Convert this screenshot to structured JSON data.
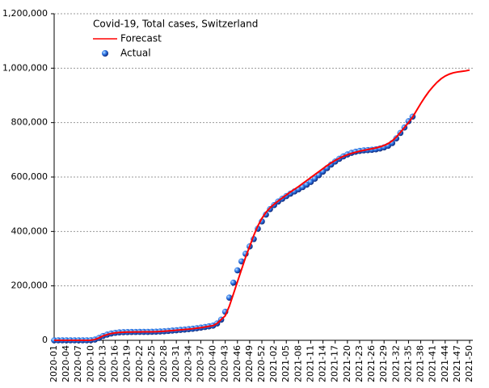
{
  "chart_data": {
    "type": "line",
    "title": "Covid-19, Total cases, Switzerland",
    "categories": [
      "2020-01",
      null,
      null,
      "2020-04",
      null,
      null,
      "2020-07",
      null,
      null,
      "2020-10",
      null,
      null,
      "2020-13",
      null,
      null,
      "2020-16",
      null,
      null,
      "2020-19",
      null,
      null,
      "2020-22",
      null,
      null,
      "2020-25",
      null,
      null,
      "2020-28",
      null,
      null,
      "2020-31",
      null,
      null,
      "2020-34",
      null,
      null,
      "2020-37",
      null,
      null,
      "2020-40",
      null,
      null,
      "2020-43",
      null,
      null,
      "2020-46",
      null,
      null,
      "2020-49",
      null,
      null,
      "2020-52",
      null,
      null,
      "2021-02",
      null,
      null,
      "2021-05",
      null,
      null,
      "2021-08",
      null,
      null,
      "2021-11",
      null,
      null,
      "2021-14",
      null,
      null,
      "2021-17",
      null,
      null,
      "2021-20",
      null,
      null,
      "2021-23",
      null,
      null,
      "2021-26",
      null,
      null,
      "2021-29",
      null,
      null,
      "2021-32",
      null,
      null,
      "2021-35",
      null,
      null,
      "2021-38",
      null,
      null,
      "2021-41",
      null,
      null,
      "2021-44",
      null,
      null,
      "2021-47",
      null,
      null,
      "2021-50"
    ],
    "series": [
      {
        "name": "Forecast",
        "color": "#ff0000",
        "values": [
          0,
          0,
          0,
          0,
          0,
          0,
          0,
          0,
          20,
          400,
          2700,
          8800,
          16000,
          21000,
          25000,
          27500,
          29000,
          29800,
          30300,
          30600,
          30800,
          30900,
          31000,
          31100,
          31300,
          31700,
          32400,
          33300,
          34500,
          35700,
          37000,
          38300,
          39600,
          41000,
          42500,
          44500,
          46500,
          49000,
          51500,
          54000,
          62000,
          76000,
          90000,
          125000,
          170000,
          215000,
          260000,
          305000,
          345000,
          385000,
          420000,
          448000,
          470000,
          487000,
          500000,
          512000,
          523000,
          534000,
          545000,
          555000,
          565000,
          576000,
          587000,
          598000,
          609000,
          620000,
          631000,
          642000,
          652000,
          661000,
          669000,
          676000,
          682000,
          687000,
          691000,
          695000,
          698000,
          701000,
          704000,
          707000,
          711000,
          716000,
          723000,
          733000,
          747000,
          764000,
          782000,
          800000,
          820000,
          845000,
          870000,
          893000,
          914000,
          932000,
          948000,
          961000,
          971000,
          978000,
          983000,
          986000,
          988000,
          990000,
          993000
        ]
      },
      {
        "name": "Actual",
        "color": "#2255dd",
        "values": [
          0,
          0,
          0,
          0,
          0,
          0,
          0,
          0,
          20,
          400,
          2700,
          8800,
          16000,
          21000,
          25000,
          27500,
          29000,
          29800,
          30300,
          30600,
          30800,
          30900,
          31000,
          31100,
          31300,
          31700,
          32400,
          33300,
          34500,
          35700,
          37000,
          38300,
          39600,
          41000,
          42500,
          44500,
          46500,
          49000,
          51500,
          54000,
          62000,
          76000,
          105000,
          157000,
          212000,
          257000,
          290000,
          318000,
          345000,
          372000,
          410000,
          437000,
          462000,
          482000,
          497000,
          510000,
          520000,
          530000,
          539000,
          547000,
          555000,
          563000,
          572000,
          582000,
          594000,
          607000,
          620000,
          633000,
          646000,
          657000,
          667000,
          676000,
          683000,
          689000,
          693000,
          696000,
          698000,
          699000,
          700000,
          702000,
          705000,
          709000,
          715000,
          725000,
          742000,
          762000,
          782000,
          805000,
          822000,
          null,
          null,
          null,
          null,
          null,
          null,
          null,
          null,
          null,
          null,
          null,
          null,
          null,
          null
        ]
      }
    ],
    "ylim": [
      0,
      1200000
    ],
    "yticks": [
      0,
      {
        "value": 200000,
        "label": "200,000"
      },
      {
        "value": 400000,
        "label": "400,000"
      },
      {
        "value": 600000,
        "label": "600,000"
      },
      {
        "value": 800000,
        "label": "800,000"
      },
      {
        "value": 1000000,
        "label": "1,000,000"
      },
      {
        "value": 1200000,
        "label": "1,200,000"
      }
    ],
    "grid": true,
    "legend": "top-left"
  }
}
